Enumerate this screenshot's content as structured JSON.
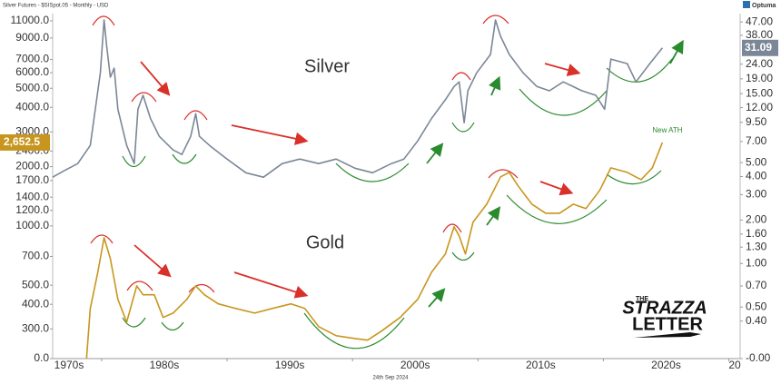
{
  "chart_data": {
    "type": "line",
    "header": "Silver Futures - $SISpot.05 - Monthly - USD",
    "brand": "Optuma",
    "footer": "24th Sep 2024",
    "annotation": "New ATH",
    "logo": {
      "line1": "THE",
      "line2": "STRAZZA",
      "line3": "LETTER"
    },
    "log_scale": true,
    "grid": false,
    "xlim": [
      1976.1,
      2030.9
    ],
    "xticks": [
      {
        "value": 1970,
        "label": "1970s"
      },
      {
        "value": 1980,
        "label": "1980s"
      },
      {
        "value": 1990,
        "label": "1990s"
      },
      {
        "value": 2000,
        "label": "2000s"
      },
      {
        "value": 2010,
        "label": "2010s"
      },
      {
        "value": 2020,
        "label": "2020s"
      },
      {
        "value": 2030,
        "label": "20"
      }
    ],
    "ylim": [
      212,
      11970
    ],
    "yticks": [
      {
        "value": 0,
        "label": "0.0"
      },
      {
        "value": 300,
        "label": "300.0"
      },
      {
        "value": 400,
        "label": "400.0"
      },
      {
        "value": 500,
        "label": "500.0"
      },
      {
        "value": 700,
        "label": "700.0"
      },
      {
        "value": 1000,
        "label": "1000.0"
      },
      {
        "value": 1200,
        "label": "1200.0"
      },
      {
        "value": 1400,
        "label": "1400.0"
      },
      {
        "value": 1700,
        "label": "1700.0"
      },
      {
        "value": 2000,
        "label": "2000.0"
      },
      {
        "value": 2400,
        "label": "2400.0"
      },
      {
        "value": 3000,
        "label": "3000.0"
      },
      {
        "value": 4000,
        "label": "4000.0"
      },
      {
        "value": 5000,
        "label": "5000.0"
      },
      {
        "value": 6000,
        "label": "6000.0"
      },
      {
        "value": 7000,
        "label": "7000.0"
      },
      {
        "value": 9000,
        "label": "9000.0"
      },
      {
        "value": 11000,
        "label": "11000.0"
      }
    ],
    "y2lim": [
      0.22,
      53.7
    ],
    "y2ticks": [
      {
        "value": 0,
        "label": "-0.00"
      },
      {
        "value": 0.4,
        "label": "0.40"
      },
      {
        "value": 0.5,
        "label": "0.50"
      },
      {
        "value": 0.7,
        "label": "0.70"
      },
      {
        "value": 1,
        "label": "1.00"
      },
      {
        "value": 1.3,
        "label": "1.30"
      },
      {
        "value": 1.6,
        "label": "1.60"
      },
      {
        "value": 2,
        "label": "2.00"
      },
      {
        "value": 3,
        "label": "3.00"
      },
      {
        "value": 4,
        "label": "4.00"
      },
      {
        "value": 5,
        "label": "5.00"
      },
      {
        "value": 7,
        "label": "7.00"
      },
      {
        "value": 9.5,
        "label": "9.50"
      },
      {
        "value": 12,
        "label": "12.00"
      },
      {
        "value": 15,
        "label": "15.00"
      },
      {
        "value": 19,
        "label": "19.00"
      },
      {
        "value": 24,
        "label": "24.00"
      },
      {
        "value": 38,
        "label": "38.00"
      },
      {
        "value": 47,
        "label": "47.00"
      }
    ],
    "series": [
      {
        "name": "Silver",
        "color": "#7b8797",
        "axis": "y2",
        "x": [
          1976.1,
          1977.0,
          1978.1,
          1979.1,
          1979.9,
          1980.2,
          1980.4,
          1980.7,
          1981.0,
          1981.3,
          1982.0,
          1982.6,
          1982.9,
          1983.3,
          1983.9,
          1984.6,
          1985.7,
          1986.4,
          1987.1,
          1987.5,
          1987.8,
          1988.6,
          1990.0,
          1991.5,
          1992.9,
          1994.4,
          1995.8,
          1997.3,
          1998.7,
          2000.2,
          2001.6,
          2003.1,
          2004.1,
          2005.2,
          2006.3,
          2007.4,
          2008.1,
          2008.5,
          2008.9,
          2009.2,
          2009.9,
          2011.0,
          2011.4,
          2011.8,
          2012.5,
          2013.6,
          2014.7,
          2015.7,
          2016.8,
          2018.3,
          2019.4,
          2020.1,
          2020.6,
          2021.9,
          2022.6,
          2023.7,
          2024.7
        ],
        "values": [
          3.96,
          4.38,
          4.92,
          6.57,
          20.9,
          48.5,
          32.3,
          19.5,
          22.5,
          11.7,
          6.57,
          4.92,
          11.7,
          14.6,
          10.1,
          7.6,
          6.11,
          5.69,
          7.6,
          10.9,
          7.6,
          6.57,
          5.29,
          4.25,
          3.96,
          4.92,
          5.29,
          4.92,
          5.29,
          4.57,
          4.25,
          4.92,
          5.29,
          7.06,
          10.1,
          13.6,
          16.8,
          18.1,
          9.44,
          15.7,
          20.9,
          28.0,
          48.5,
          37.4,
          28.0,
          20.9,
          16.8,
          15.7,
          18.1,
          15.7,
          14.6,
          11.7,
          26.0,
          24.2,
          18.1,
          24.2,
          31.09
        ]
      },
      {
        "name": "Gold",
        "color": "#c8961e",
        "axis": "y",
        "x": [
          1978.8,
          1979.1,
          1979.7,
          1980.2,
          1980.7,
          1981.3,
          1982.0,
          1982.8,
          1983.3,
          1984.2,
          1984.9,
          1985.7,
          1986.8,
          1987.5,
          1988.2,
          1989.3,
          1990.7,
          1992.2,
          1993.6,
          1995.1,
          1996.2,
          1997.3,
          1998.7,
          2000.2,
          2001.2,
          2002.3,
          2003.8,
          2005.2,
          2006.3,
          2007.4,
          2008.1,
          2008.5,
          2009.0,
          2009.6,
          2010.7,
          2011.8,
          2012.5,
          2013.2,
          2014.3,
          2015.4,
          2016.5,
          2017.6,
          2018.6,
          2019.7,
          2020.6,
          2021.9,
          2023.0,
          2023.9,
          2024.7
        ],
        "values": [
          212,
          381,
          582,
          871,
          682,
          424,
          325,
          496,
          447,
          447,
          343,
          361,
          424,
          496,
          447,
          402,
          381,
          361,
          381,
          402,
          381,
          308,
          277,
          268,
          263,
          292,
          343,
          424,
          582,
          720,
          990,
          890,
          720,
          1043,
          1290,
          1775,
          1870,
          1597,
          1290,
          1160,
          1160,
          1290,
          1224,
          1514,
          1972,
          1870,
          1718,
          1972,
          2652.5
        ],
        "value_labels": [
          null,
          null,
          null,
          null,
          null,
          null,
          null,
          null,
          null,
          null,
          null,
          null,
          null,
          null,
          null,
          null,
          null,
          null,
          null,
          null,
          null,
          null,
          null,
          null,
          null,
          null,
          null,
          null,
          null,
          null,
          null,
          null,
          null,
          null,
          null,
          null,
          null,
          null,
          null,
          null,
          null,
          null,
          null,
          null,
          null,
          null,
          null,
          null,
          "2,652.5"
        ]
      }
    ]
  }
}
